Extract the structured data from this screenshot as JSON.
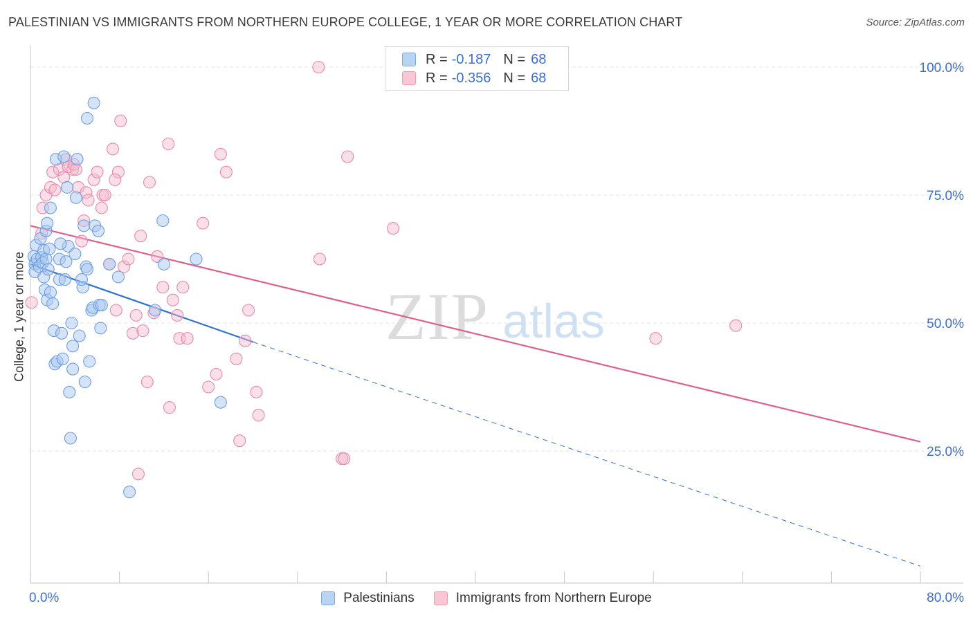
{
  "header": {
    "title": "PALESTINIAN VS IMMIGRANTS FROM NORTHERN EUROPE COLLEGE, 1 YEAR OR MORE CORRELATION CHART",
    "source": "Source: ZipAtlas.com"
  },
  "watermark": {
    "zip": "ZIP",
    "atlas": "atlas"
  },
  "legend": {
    "series1": {
      "r_label": "R =",
      "r_value": "-0.187",
      "n_label": "N =",
      "n_value": "68"
    },
    "series2": {
      "r_label": "R =",
      "r_value": "-0.356",
      "n_label": "N =",
      "n_value": "68"
    }
  },
  "colors": {
    "blue_fill": "#a9c8f0",
    "blue_stroke": "#6f9fe0",
    "blue_line": "#2f6fd1",
    "pink_fill": "#f5b8cb",
    "pink_stroke": "#e98aa8",
    "pink_line": "#e05f8a",
    "tick_color": "#3a6fd0",
    "grid": "#e3e3e3"
  },
  "chart_data": {
    "type": "scatter",
    "title": "PALESTINIAN VS IMMIGRANTS FROM NORTHERN EUROPE COLLEGE, 1 YEAR OR MORE CORRELATION CHART",
    "xlabel": "",
    "ylabel": "College, 1 year or more",
    "xlim": [
      0,
      80
    ],
    "ylim": [
      0,
      105
    ],
    "x_tick_labels": [
      "0.0%",
      "80.0%"
    ],
    "y_ticks": [
      25,
      50,
      75,
      100
    ],
    "y_tick_labels": [
      "25.0%",
      "50.0%",
      "75.0%",
      "100.0%"
    ],
    "legend_position": "top-center",
    "series": [
      {
        "name": "Palestinians",
        "color": "blue",
        "points": [
          [
            0.3,
            63.0
          ],
          [
            0.4,
            61.5
          ],
          [
            0.4,
            60.0
          ],
          [
            0.5,
            65.2
          ],
          [
            0.6,
            62.5
          ],
          [
            0.8,
            61.0
          ],
          [
            0.9,
            66.5
          ],
          [
            1.0,
            62.8
          ],
          [
            1.1,
            61.8
          ],
          [
            1.2,
            59.0
          ],
          [
            1.2,
            64.2
          ],
          [
            1.3,
            56.5
          ],
          [
            1.4,
            62.5
          ],
          [
            1.4,
            68.0
          ],
          [
            1.5,
            54.5
          ],
          [
            1.5,
            69.5
          ],
          [
            1.6,
            60.5
          ],
          [
            1.7,
            64.5
          ],
          [
            1.8,
            72.5
          ],
          [
            1.8,
            56.0
          ],
          [
            2.0,
            53.8
          ],
          [
            2.1,
            48.5
          ],
          [
            2.2,
            42.0
          ],
          [
            2.3,
            82.0
          ],
          [
            2.4,
            42.5
          ],
          [
            2.6,
            62.5
          ],
          [
            2.6,
            58.5
          ],
          [
            2.8,
            48.0
          ],
          [
            2.9,
            43.0
          ],
          [
            3.0,
            82.5
          ],
          [
            3.1,
            58.5
          ],
          [
            3.2,
            62.0
          ],
          [
            3.3,
            76.5
          ],
          [
            3.4,
            65.0
          ],
          [
            3.5,
            36.5
          ],
          [
            3.6,
            27.5
          ],
          [
            3.7,
            50.0
          ],
          [
            3.8,
            41.0
          ],
          [
            3.8,
            45.5
          ],
          [
            4.0,
            63.5
          ],
          [
            4.1,
            74.5
          ],
          [
            4.2,
            82.0
          ],
          [
            4.4,
            47.5
          ],
          [
            4.7,
            57.0
          ],
          [
            4.8,
            69.0
          ],
          [
            4.9,
            38.5
          ],
          [
            5.0,
            61.0
          ],
          [
            5.1,
            60.5
          ],
          [
            5.1,
            90.0
          ],
          [
            5.3,
            42.5
          ],
          [
            5.5,
            52.5
          ],
          [
            5.6,
            53.0
          ],
          [
            5.7,
            93.0
          ],
          [
            5.8,
            69.0
          ],
          [
            6.1,
            68.0
          ],
          [
            6.2,
            53.5
          ],
          [
            6.3,
            49.0
          ],
          [
            6.4,
            53.5
          ],
          [
            7.1,
            61.5
          ],
          [
            7.9,
            59.0
          ],
          [
            8.9,
            17.0
          ],
          [
            11.2,
            52.5
          ],
          [
            11.9,
            70.0
          ],
          [
            12.0,
            61.5
          ],
          [
            14.9,
            62.5
          ],
          [
            17.1,
            34.5
          ],
          [
            4.6,
            58.5
          ],
          [
            2.7,
            65.5
          ]
        ]
      },
      {
        "name": "Immigrants from Northern Europe",
        "color": "pink",
        "points": [
          [
            0.1,
            54.0
          ],
          [
            1.0,
            67.5
          ],
          [
            1.1,
            72.5
          ],
          [
            1.4,
            75.0
          ],
          [
            1.8,
            76.5
          ],
          [
            2.0,
            79.5
          ],
          [
            2.2,
            76.0
          ],
          [
            2.6,
            80.0
          ],
          [
            3.0,
            78.5
          ],
          [
            3.2,
            82.0
          ],
          [
            3.4,
            80.5
          ],
          [
            3.8,
            80.0
          ],
          [
            3.9,
            81.0
          ],
          [
            4.1,
            80.0
          ],
          [
            4.3,
            76.5
          ],
          [
            4.6,
            66.0
          ],
          [
            4.8,
            70.0
          ],
          [
            5.0,
            75.5
          ],
          [
            5.2,
            74.0
          ],
          [
            5.7,
            78.0
          ],
          [
            6.0,
            79.5
          ],
          [
            6.4,
            72.5
          ],
          [
            6.5,
            75.0
          ],
          [
            6.7,
            75.0
          ],
          [
            7.1,
            61.5
          ],
          [
            7.4,
            84.0
          ],
          [
            7.7,
            52.5
          ],
          [
            7.9,
            79.5
          ],
          [
            8.1,
            89.5
          ],
          [
            8.4,
            61.0
          ],
          [
            8.8,
            62.5
          ],
          [
            9.2,
            48.0
          ],
          [
            9.5,
            51.5
          ],
          [
            9.7,
            20.5
          ],
          [
            9.9,
            67.0
          ],
          [
            10.1,
            48.5
          ],
          [
            10.5,
            38.5
          ],
          [
            10.7,
            77.5
          ],
          [
            11.1,
            52.0
          ],
          [
            11.4,
            63.0
          ],
          [
            11.9,
            57.0
          ],
          [
            12.4,
            85.0
          ],
          [
            12.5,
            33.5
          ],
          [
            12.8,
            54.5
          ],
          [
            13.2,
            51.5
          ],
          [
            13.4,
            47.0
          ],
          [
            13.7,
            57.0
          ],
          [
            14.1,
            47.0
          ],
          [
            15.5,
            69.5
          ],
          [
            16.0,
            37.5
          ],
          [
            16.7,
            40.0
          ],
          [
            17.1,
            83.0
          ],
          [
            17.6,
            79.5
          ],
          [
            18.5,
            43.0
          ],
          [
            18.8,
            27.0
          ],
          [
            19.3,
            46.5
          ],
          [
            19.6,
            52.5
          ],
          [
            20.3,
            36.5
          ],
          [
            20.5,
            32.0
          ],
          [
            25.9,
            100.0
          ],
          [
            26.0,
            62.5
          ],
          [
            28.0,
            23.5
          ],
          [
            28.2,
            23.5
          ],
          [
            28.5,
            82.5
          ],
          [
            32.6,
            68.5
          ],
          [
            56.2,
            47.0
          ],
          [
            63.4,
            49.5
          ],
          [
            7.6,
            78.0
          ]
        ]
      }
    ],
    "trendlines": [
      {
        "series": "Palestinians",
        "x": [
          0,
          20
        ],
        "y": [
          61.5,
          46.3
        ],
        "style": "solid"
      },
      {
        "series": "Palestinians",
        "x": [
          20,
          80
        ],
        "y": [
          46.3,
          2.5
        ],
        "style": "dashed"
      },
      {
        "series": "Immigrants from Northern Europe",
        "x": [
          0,
          80
        ],
        "y": [
          69.0,
          26.8
        ],
        "style": "solid"
      }
    ]
  }
}
